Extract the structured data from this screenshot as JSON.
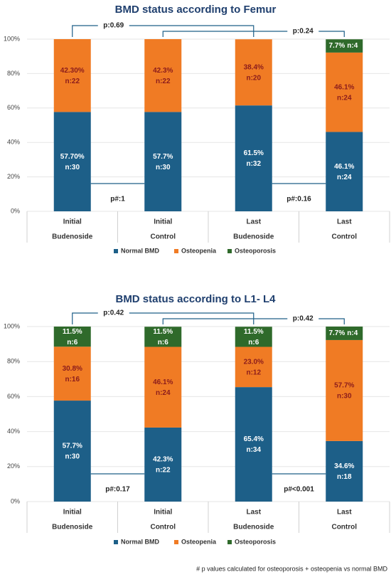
{
  "chart_data": [
    {
      "type": "stacked_bar",
      "title": "BMD status  according to Femur",
      "categories": [
        [
          "Initial",
          "Budenoside"
        ],
        [
          "Initial",
          "Control"
        ],
        [
          "Last",
          "Budenoside"
        ],
        [
          "Last",
          "Control"
        ]
      ],
      "series": [
        {
          "name": "Normal BMD",
          "color": "#1d5f88",
          "label_color": "#ffffff",
          "values": [
            57.7,
            57.7,
            61.5,
            46.1
          ],
          "value_labels": [
            "57.70%",
            "57.7%",
            "61.5%",
            "46.1%"
          ],
          "count_labels": [
            "n:30",
            "n:30",
            "n:32",
            "n:24"
          ]
        },
        {
          "name": "Osteopenia",
          "color": "#f07b24",
          "label_color": "#8b1c1c",
          "values": [
            42.3,
            42.3,
            38.4,
            46.1
          ],
          "value_labels": [
            "42.30%",
            "42.3%",
            "38.4%",
            "46.1%"
          ],
          "count_labels": [
            "n:22",
            "n:22",
            "n:20",
            "n:24"
          ]
        },
        {
          "name": "Osteoporosis",
          "color": "#2f6a2b",
          "label_color": "#ffffff",
          "values": [
            0,
            0,
            0,
            7.7
          ],
          "value_labels": [
            null,
            null,
            null,
            "7.7%"
          ],
          "count_labels": [
            null,
            null,
            null,
            "n:4"
          ]
        }
      ],
      "ylim": [
        0,
        100
      ],
      "yticks": [
        {
          "value": 0,
          "label": "0%"
        },
        {
          "value": 20,
          "label": "20%"
        },
        {
          "value": 40,
          "label": "40%"
        },
        {
          "value": 60,
          "label": "60%"
        },
        {
          "value": 80,
          "label": "80%"
        },
        {
          "value": 100,
          "label": "100%"
        }
      ],
      "grid": true,
      "annotations": {
        "top": [
          "p:0.69",
          "p:0.24"
        ],
        "bottom": [
          "p#:1",
          "p#:0.16"
        ]
      }
    },
    {
      "type": "stacked_bar",
      "title": "BMD status according to L1- L4",
      "categories": [
        [
          "Initial",
          "Budenoside"
        ],
        [
          "Initial",
          "Control"
        ],
        [
          "Last",
          "Budenoside"
        ],
        [
          "Last",
          "Control"
        ]
      ],
      "series": [
        {
          "name": "Normal BMD",
          "color": "#1d5f88",
          "label_color": "#ffffff",
          "values": [
            57.7,
            42.3,
            65.4,
            34.6
          ],
          "value_labels": [
            "57.7%",
            "42.3%",
            "65.4%",
            "34.6%"
          ],
          "count_labels": [
            "n:30",
            "n:22",
            "n:34",
            "n:18"
          ]
        },
        {
          "name": "Osteopenia",
          "color": "#f07b24",
          "label_color": "#8b1c1c",
          "values": [
            30.8,
            46.1,
            23.0,
            57.7
          ],
          "value_labels": [
            "30.8%",
            "46.1%",
            "23.0%",
            "57.7%"
          ],
          "count_labels": [
            "n:16",
            "n:24",
            "n:12",
            "n:30"
          ]
        },
        {
          "name": "Osteoporosis",
          "color": "#2f6a2b",
          "label_color": "#ffffff",
          "values": [
            11.5,
            11.5,
            11.5,
            7.7
          ],
          "value_labels": [
            "11.5%",
            "11.5%",
            "11.5%",
            "7.7%"
          ],
          "count_labels": [
            "n:6",
            "n:6",
            "n:6",
            "n:4"
          ]
        }
      ],
      "ylim": [
        0,
        100
      ],
      "yticks": [
        {
          "value": 0,
          "label": "0%"
        },
        {
          "value": 20,
          "label": "20%"
        },
        {
          "value": 40,
          "label": "40%"
        },
        {
          "value": 60,
          "label": "60%"
        },
        {
          "value": 80,
          "label": "80%"
        },
        {
          "value": 100,
          "label": "100%"
        }
      ],
      "grid": true,
      "annotations": {
        "top": [
          "p:0.42",
          "p:0.42"
        ],
        "bottom": [
          "p#:0.17",
          "p#<0.001"
        ]
      }
    }
  ],
  "footnote": "# p values calculated for osteoporosis + osteopenia vs normal BMD"
}
